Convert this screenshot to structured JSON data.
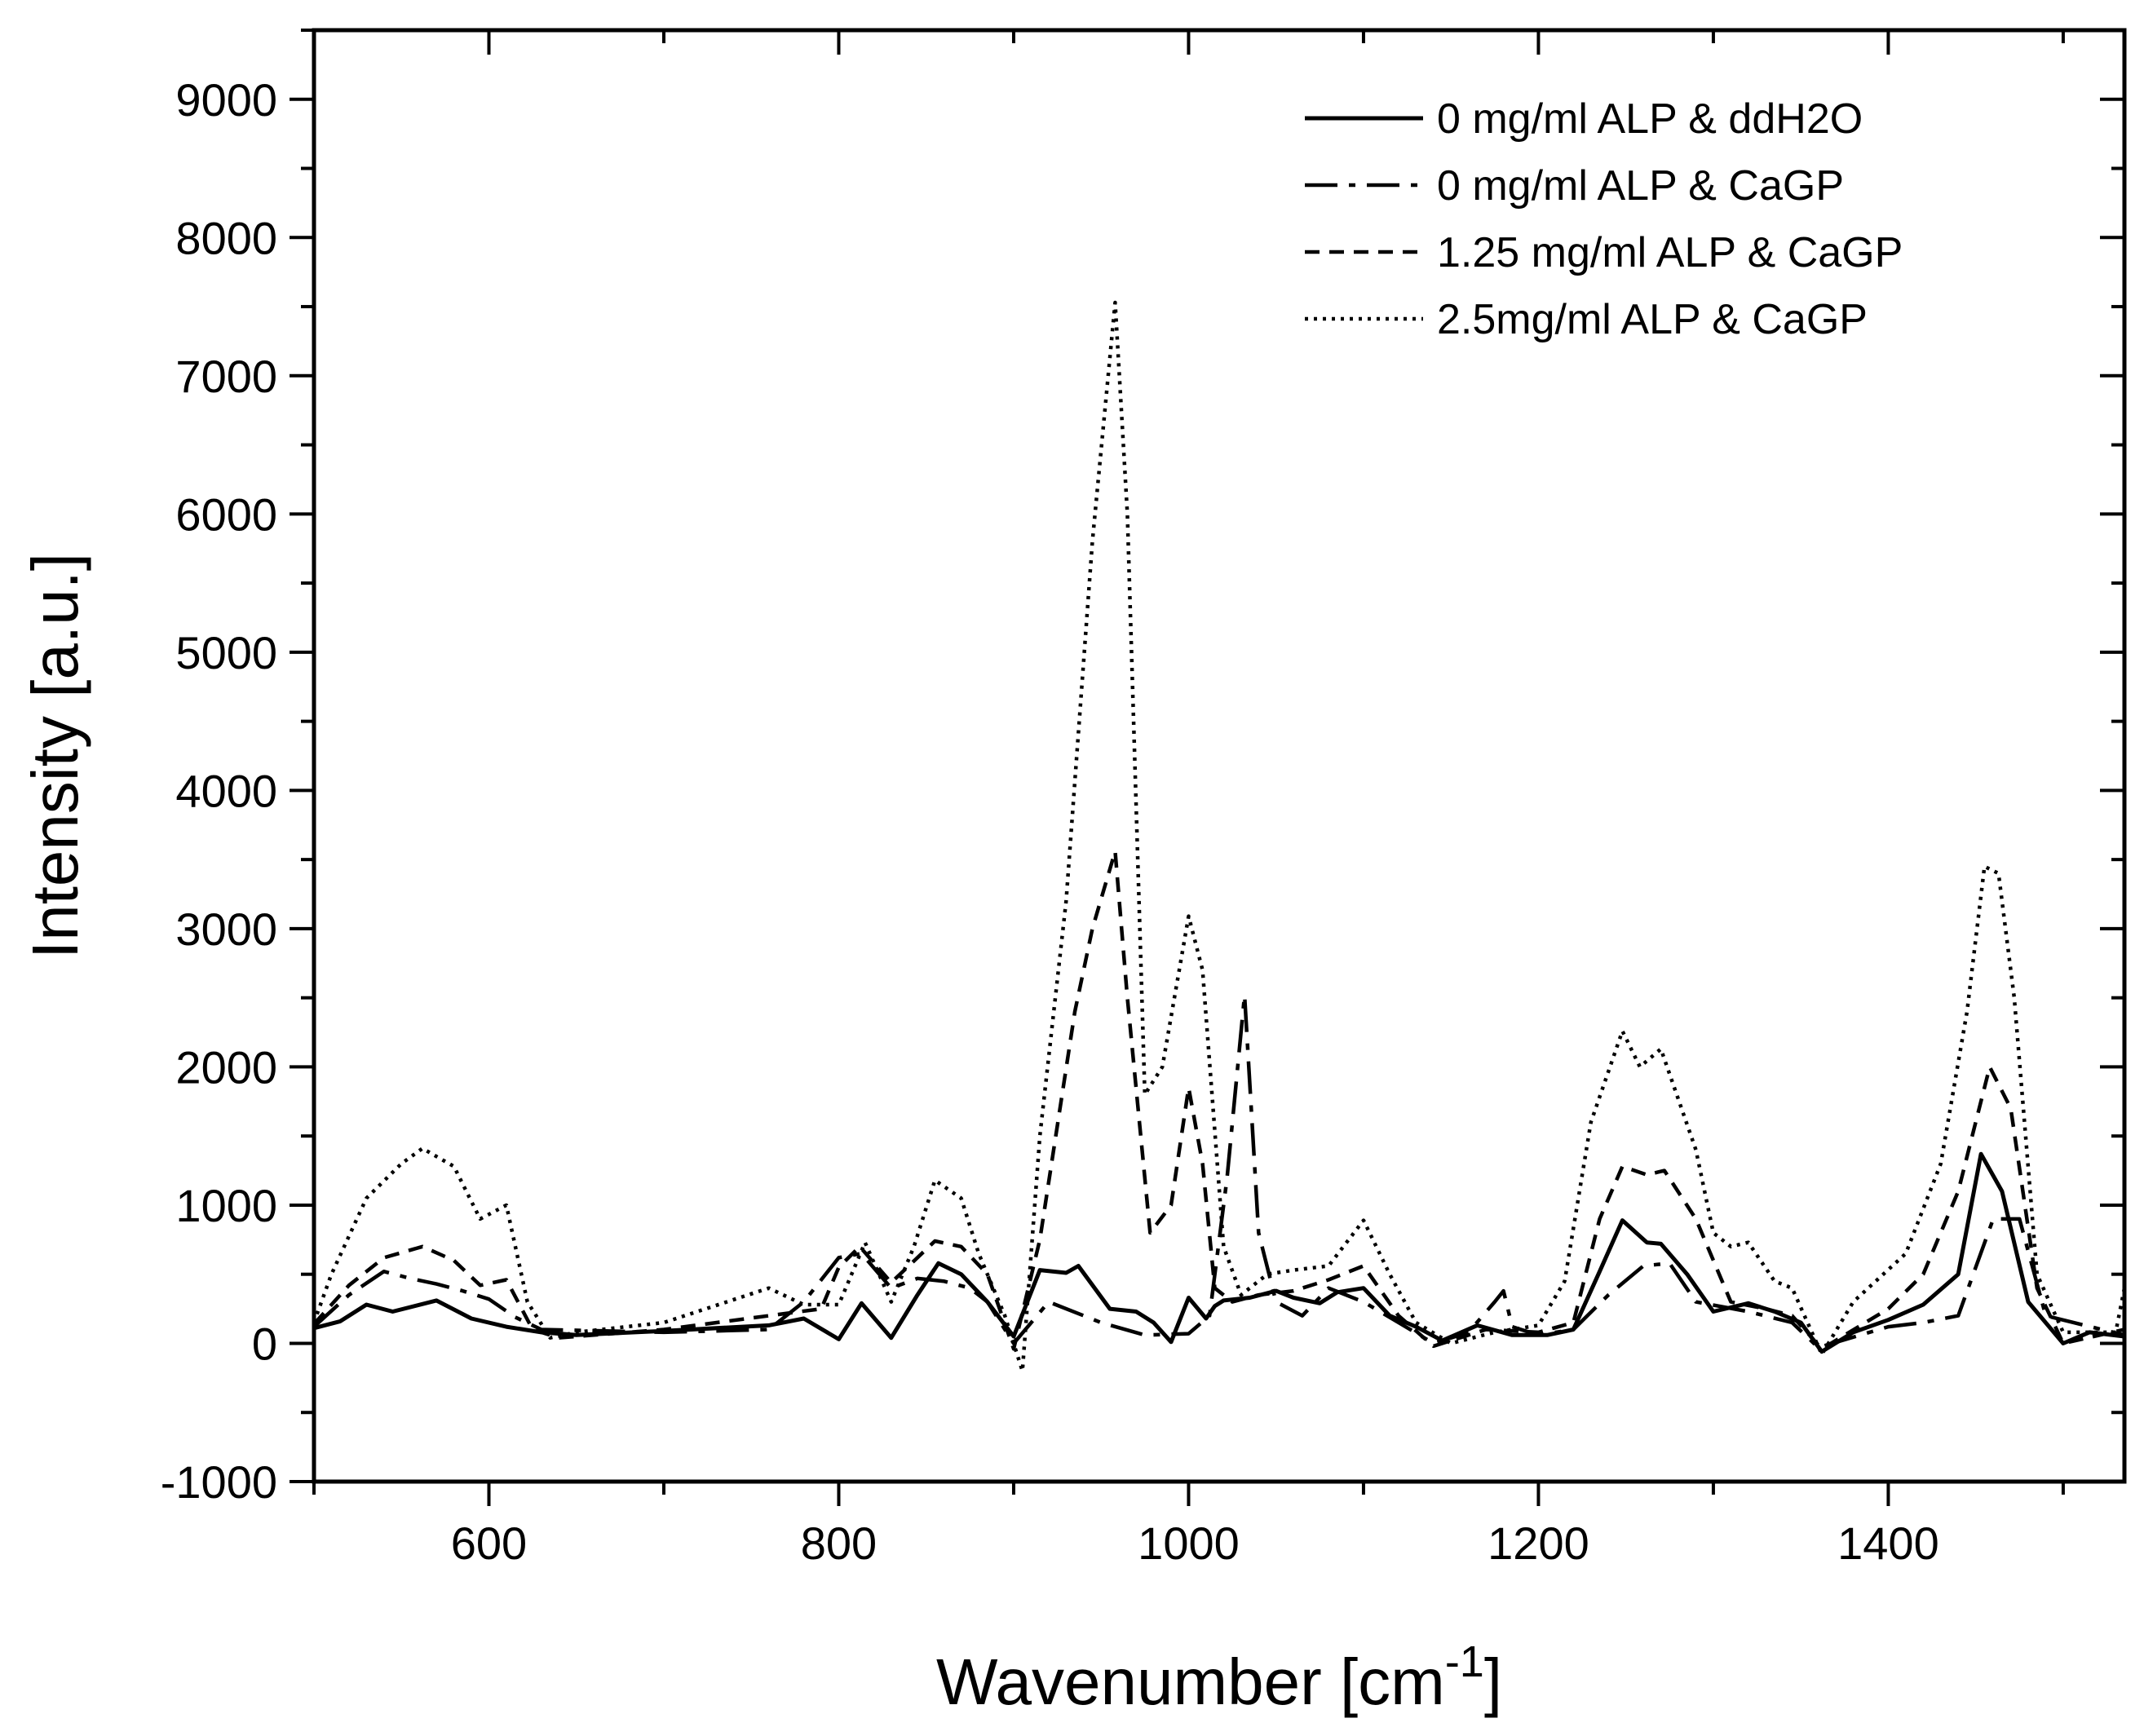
{
  "chart_data": {
    "type": "line",
    "xlabel": "Wavenumber [cm",
    "xlabel_sup": "-1",
    "xlabel_end": "]",
    "ylabel": "Intensity [a.u.]",
    "xlim": [
      500,
      1535
    ],
    "ylim": [
      -1000,
      9500
    ],
    "x_ticks": [
      600,
      800,
      1000,
      1200,
      1400
    ],
    "y_ticks": [
      -1000,
      0,
      1000,
      2000,
      3000,
      4000,
      5000,
      6000,
      7000,
      8000,
      9000
    ],
    "legend_position": "top-right",
    "grid": false,
    "series": [
      {
        "name": "0 mg/ml ALP & ddH2O",
        "style": "solid",
        "x": [
          500,
          515,
          530,
          545,
          570,
          590,
          610,
          630,
          650,
          700,
          760,
          780,
          800,
          813,
          830,
          845,
          857,
          870,
          885,
          900,
          915,
          930,
          937,
          955,
          970,
          980,
          990,
          1000,
          1010,
          1015,
          1020,
          1035,
          1050,
          1060,
          1075,
          1085,
          1100,
          1115,
          1130,
          1145,
          1165,
          1185,
          1205,
          1220,
          1235,
          1248,
          1262,
          1270,
          1285,
          1300,
          1320,
          1335,
          1350,
          1362,
          1380,
          1400,
          1420,
          1440,
          1453,
          1465,
          1480,
          1500,
          1515,
          1535
        ],
        "y": [
          110,
          160,
          280,
          230,
          310,
          180,
          120,
          80,
          60,
          90,
          130,
          180,
          30,
          290,
          40,
          350,
          580,
          500,
          300,
          50,
          530,
          510,
          560,
          250,
          230,
          150,
          10,
          330,
          180,
          270,
          310,
          330,
          380,
          330,
          290,
          370,
          400,
          200,
          120,
          20,
          130,
          60,
          60,
          100,
          520,
          890,
          730,
          720,
          500,
          230,
          290,
          230,
          150,
          -60,
          80,
          170,
          280,
          500,
          1370,
          1100,
          300,
          0,
          80,
          50
        ]
      },
      {
        "name": "0 mg/ml ALP & CaGP",
        "style": "dashdot",
        "x": [
          500,
          520,
          540,
          555,
          570,
          585,
          600,
          615,
          630,
          700,
          760,
          780,
          800,
          813,
          830,
          845,
          860,
          875,
          885,
          900,
          920,
          950,
          975,
          1000,
          1012,
          1022,
          1032,
          1040,
          1050,
          1065,
          1080,
          1100,
          1120,
          1140,
          1160,
          1175,
          1180,
          1185,
          1200,
          1220,
          1240,
          1260,
          1275,
          1290,
          1320,
          1345,
          1360,
          1400,
          1420,
          1440,
          1460,
          1475,
          1490,
          1535
        ],
        "y": [
          120,
          350,
          520,
          470,
          430,
          380,
          320,
          190,
          100,
          80,
          100,
          300,
          620,
          650,
          400,
          470,
          450,
          400,
          300,
          0,
          300,
          150,
          60,
          70,
          200,
          1200,
          2520,
          800,
          300,
          200,
          400,
          300,
          150,
          0,
          80,
          300,
          380,
          120,
          60,
          100,
          350,
          560,
          580,
          300,
          230,
          150,
          -30,
          120,
          150,
          200,
          900,
          900,
          200,
          60
        ]
      },
      {
        "name": "1.25 mg/ml ALP & CaGP",
        "style": "dashed",
        "x": [
          500,
          520,
          540,
          562,
          580,
          595,
          610,
          625,
          640,
          700,
          760,
          790,
          800,
          812,
          830,
          855,
          870,
          885,
          900,
          915,
          935,
          945,
          958,
          965,
          978,
          990,
          1000,
          1008,
          1015,
          1025,
          1040,
          1060,
          1080,
          1100,
          1120,
          1140,
          1170,
          1200,
          1220,
          1235,
          1248,
          1262,
          1272,
          1290,
          1310,
          1330,
          1345,
          1362,
          1400,
          1420,
          1440,
          1458,
          1470,
          1485,
          1500,
          1535
        ],
        "y": [
          140,
          420,
          620,
          700,
          600,
          420,
          460,
          100,
          40,
          100,
          200,
          250,
          550,
          700,
          440,
          740,
          700,
          500,
          -40,
          750,
          2400,
          3000,
          3560,
          2500,
          800,
          1000,
          1850,
          1300,
          400,
          300,
          350,
          380,
          460,
          560,
          200,
          -20,
          100,
          80,
          150,
          900,
          1280,
          1220,
          1250,
          900,
          300,
          250,
          200,
          -40,
          250,
          500,
          1100,
          2000,
          1700,
          400,
          0,
          100
        ]
      },
      {
        "name": "2.5mg/ml ALP & CaGP",
        "style": "dotted",
        "x": [
          500,
          510,
          530,
          550,
          562,
          580,
          595,
          610,
          622,
          635,
          650,
          700,
          760,
          780,
          800,
          815,
          830,
          843,
          855,
          870,
          880,
          895,
          905,
          915,
          930,
          945,
          958,
          965,
          975,
          985,
          1000,
          1008,
          1020,
          1030,
          1045,
          1060,
          1080,
          1100,
          1115,
          1130,
          1150,
          1175,
          1200,
          1215,
          1230,
          1248,
          1258,
          1270,
          1290,
          1300,
          1310,
          1320,
          1335,
          1345,
          1362,
          1380,
          1410,
          1430,
          1445,
          1455,
          1463,
          1472,
          1485,
          1500,
          1530,
          1535
        ],
        "y": [
          150,
          500,
          1050,
          1300,
          1410,
          1280,
          900,
          1000,
          300,
          40,
          80,
          150,
          400,
          280,
          280,
          730,
          300,
          700,
          1180,
          1050,
          650,
          200,
          -200,
          1500,
          3200,
          5800,
          7530,
          6000,
          1800,
          2000,
          3090,
          2700,
          700,
          350,
          500,
          530,
          560,
          890,
          500,
          150,
          0,
          80,
          130,
          450,
          1600,
          2260,
          2000,
          2130,
          1400,
          800,
          700,
          730,
          450,
          400,
          -80,
          300,
          650,
          1300,
          2400,
          3450,
          3400,
          2500,
          500,
          80,
          80,
          400
        ]
      }
    ]
  }
}
